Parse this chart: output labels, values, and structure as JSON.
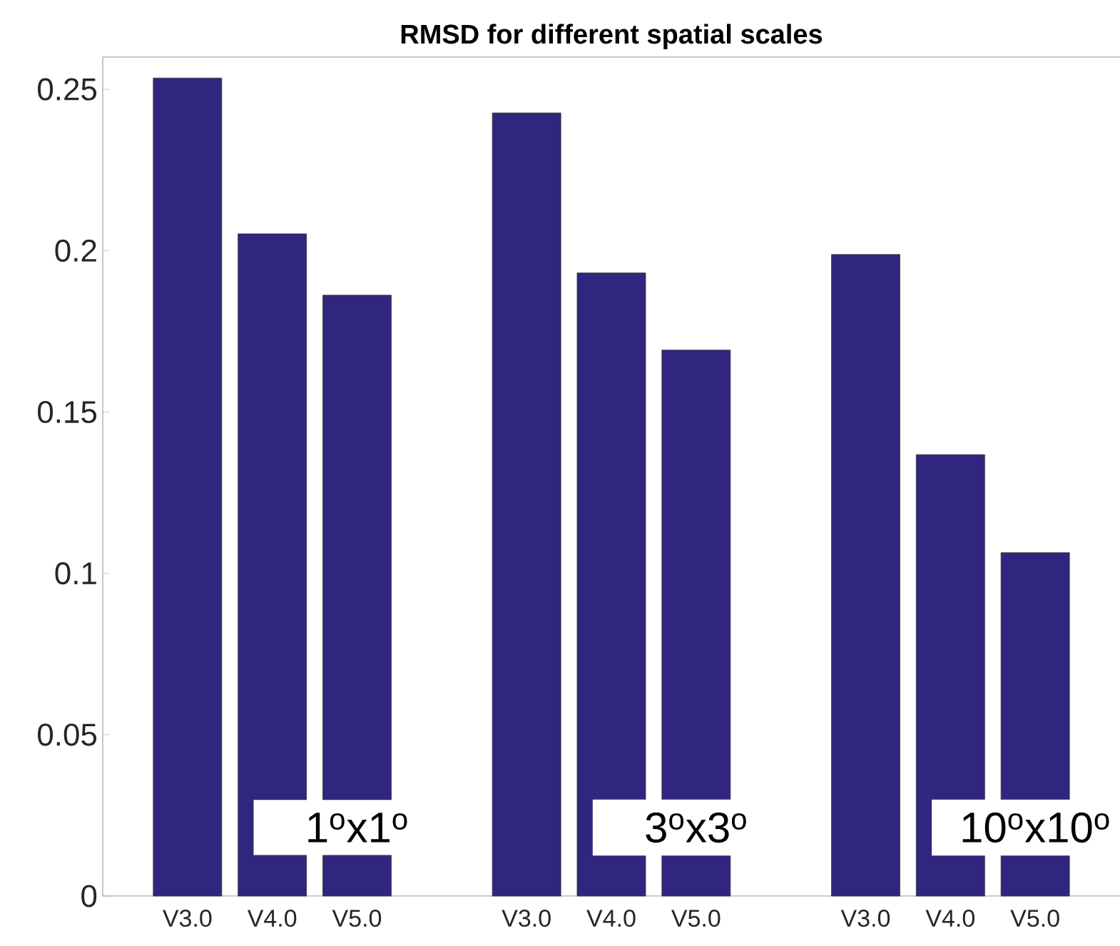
{
  "chart_data": {
    "type": "bar",
    "title": "RMSD for different spatial scales",
    "categories": [
      "V3.0",
      "V4.0",
      "V5.0",
      null,
      "V3.0",
      "V4.0",
      "V5.0",
      null,
      "V3.0",
      "V4.0",
      "V5.0"
    ],
    "values": [
      0.2535,
      0.2052,
      0.1862,
      null,
      0.2427,
      0.1931,
      0.1692,
      null,
      0.1988,
      0.1368,
      0.1064
    ],
    "color": "#31267f",
    "ylim": [
      0,
      0.26
    ],
    "yticks": [
      0,
      0.05,
      0.1,
      0.15,
      0.2,
      0.25
    ],
    "annotations": [
      "1$^{o}$x1$^{o}$",
      "3$^{o}$x3$^{o}$",
      "10$^{o}$x10$^{o}$"
    ]
  }
}
